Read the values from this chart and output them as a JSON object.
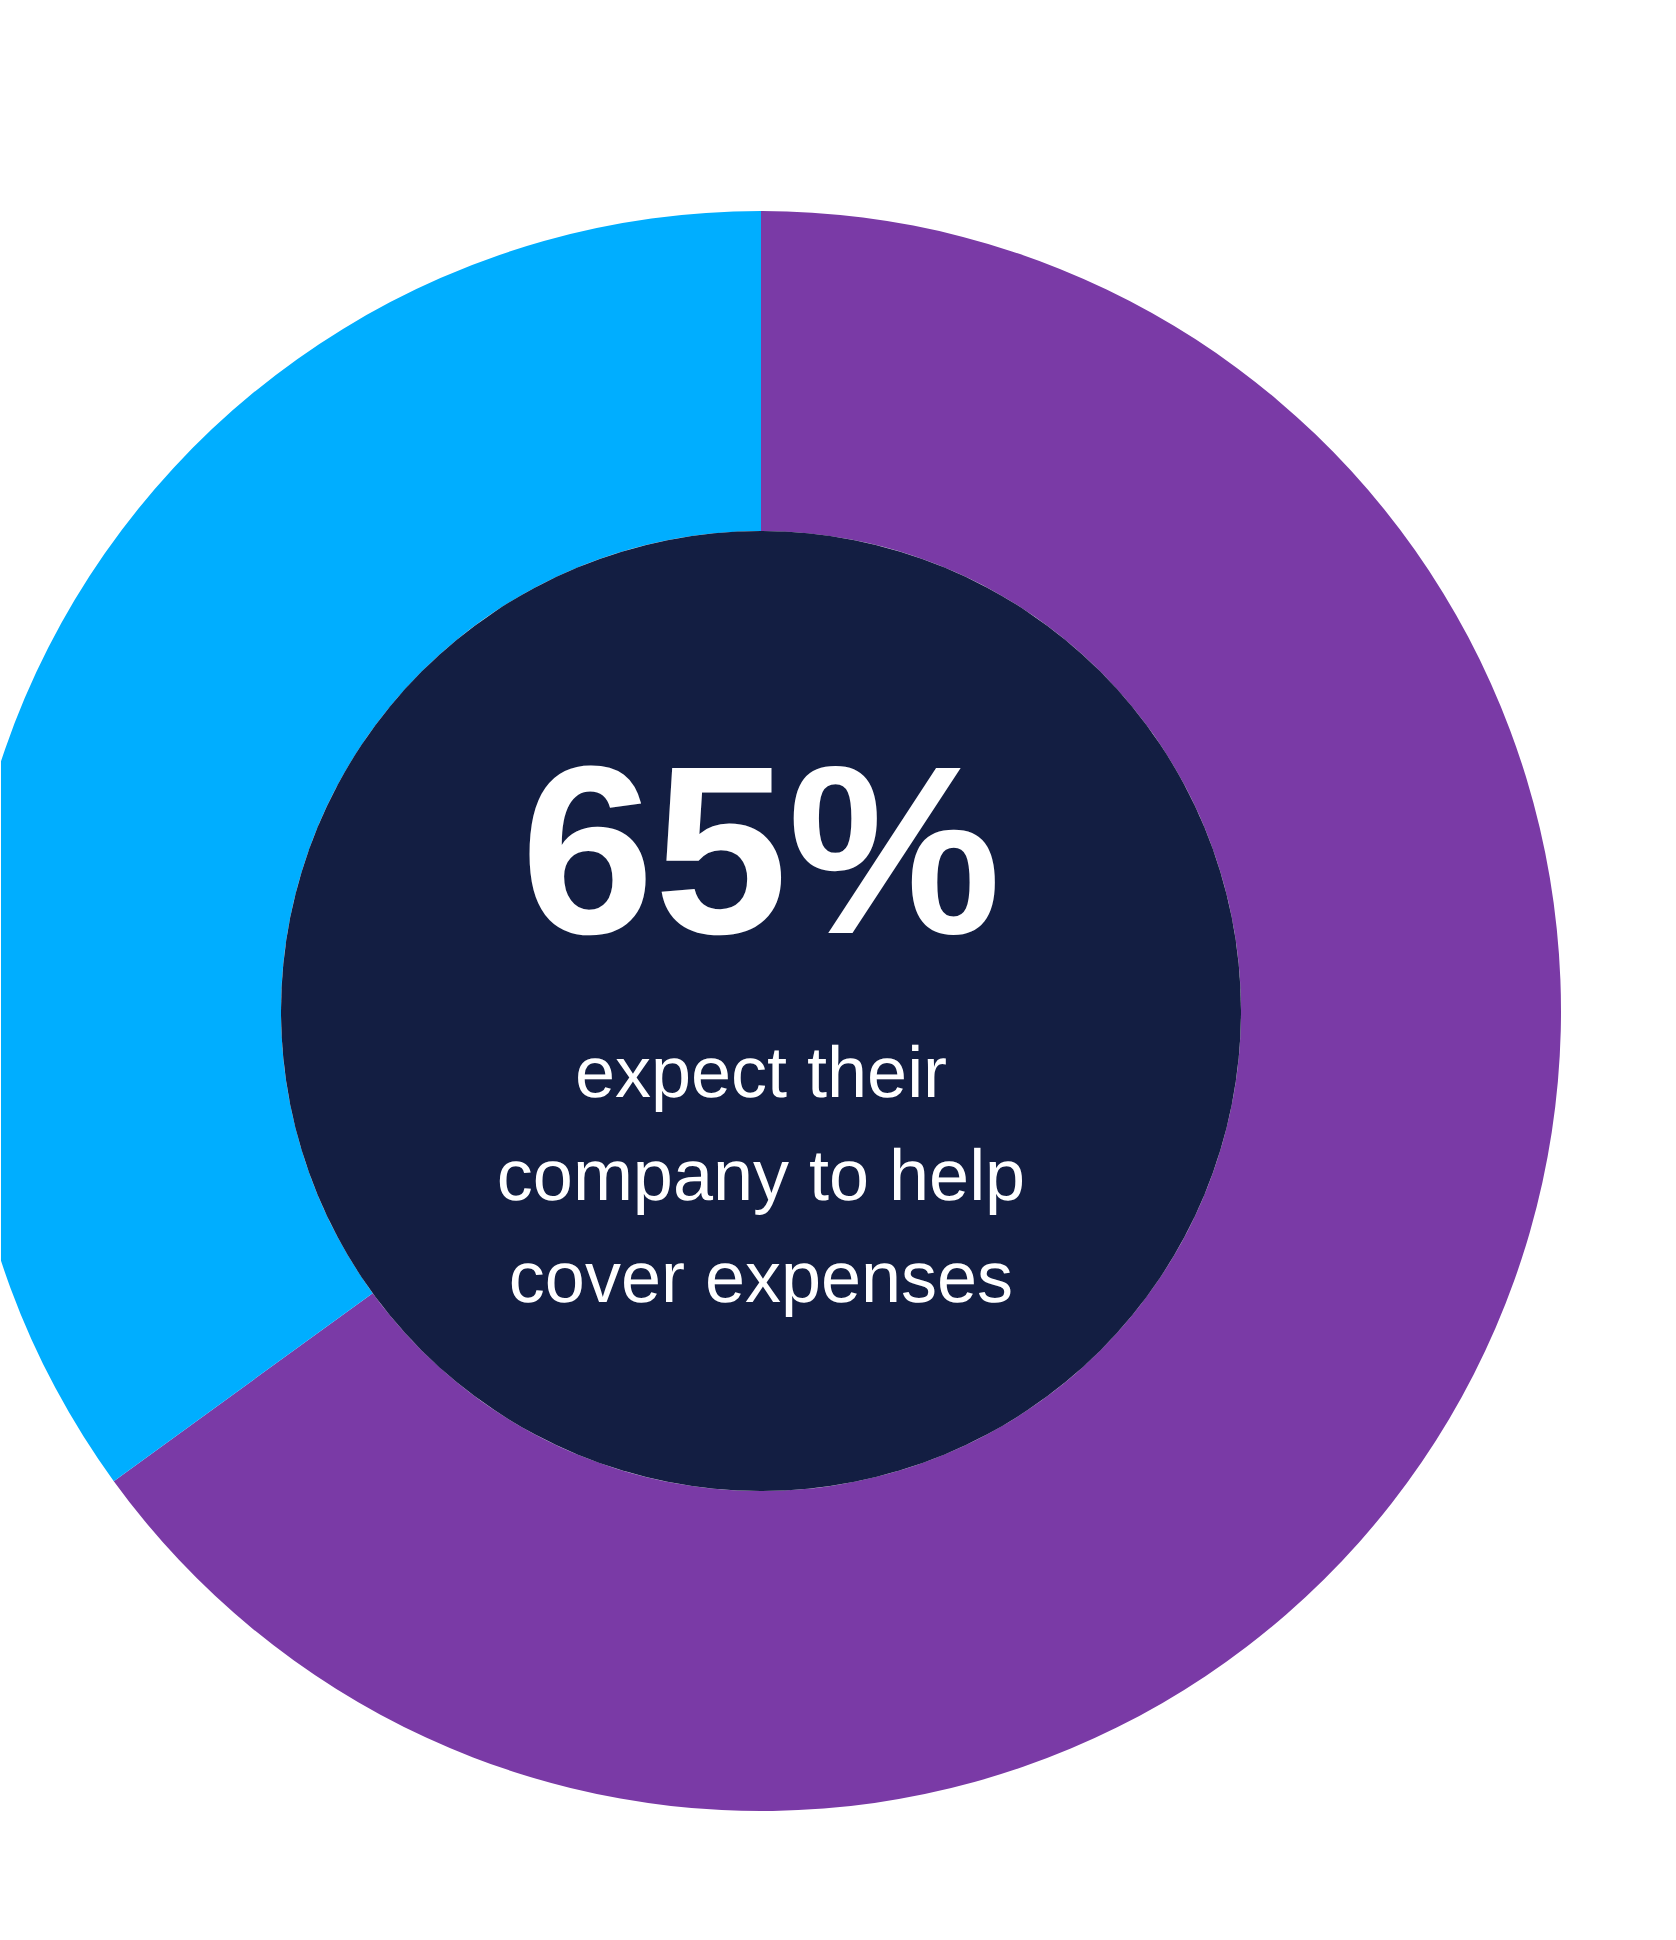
{
  "chart_data": {
    "type": "donut",
    "categories": [
      null,
      null
    ],
    "values": [
      65,
      35
    ],
    "colors": [
      "#7a3aa6",
      "#00aeff"
    ],
    "annotations": [
      "65%",
      "expect their\ncompany to help\ncover expenses"
    ]
  }
}
